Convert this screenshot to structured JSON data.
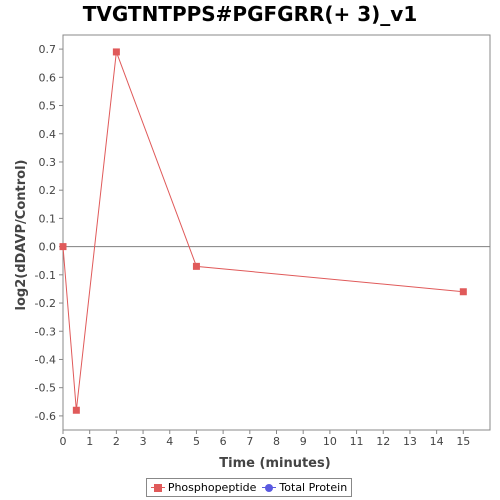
{
  "chart_data": {
    "type": "line",
    "title": "TVGTNTPPS#PGFGRR(+ 3)_v1",
    "xlabel": "Time (minutes)",
    "ylabel": "log2(dDAVP/Control)",
    "xlim": [
      0,
      16
    ],
    "ylim": [
      -0.65,
      0.75
    ],
    "x_ticks": [
      0,
      1,
      2,
      3,
      4,
      5,
      6,
      7,
      8,
      9,
      10,
      11,
      12,
      13,
      14,
      15
    ],
    "y_ticks": [
      -0.6,
      -0.5,
      -0.4,
      -0.3,
      -0.2,
      -0.1,
      0.0,
      0.1,
      0.2,
      0.3,
      0.4,
      0.5,
      0.6,
      0.7
    ],
    "y_tick_labels": [
      "-0.6",
      "-0.5",
      "-0.4",
      "-0.3",
      "-0.2",
      "-0.1",
      "0.0",
      "0.1",
      "0.2",
      "0.3",
      "0.4",
      "0.5",
      "0.6",
      "0.7"
    ],
    "zero_line": true,
    "grid": false,
    "legend_position": "bottom-center",
    "series": [
      {
        "name": "Phosphopeptide",
        "color": "#e05a5a",
        "marker": "square",
        "x": [
          0,
          0.5,
          2,
          5,
          15
        ],
        "y": [
          0.0,
          -0.58,
          0.69,
          -0.07,
          -0.16
        ]
      },
      {
        "name": "Total Protein",
        "color": "#5a5ae0",
        "marker": "circle",
        "x": [],
        "y": []
      }
    ]
  }
}
